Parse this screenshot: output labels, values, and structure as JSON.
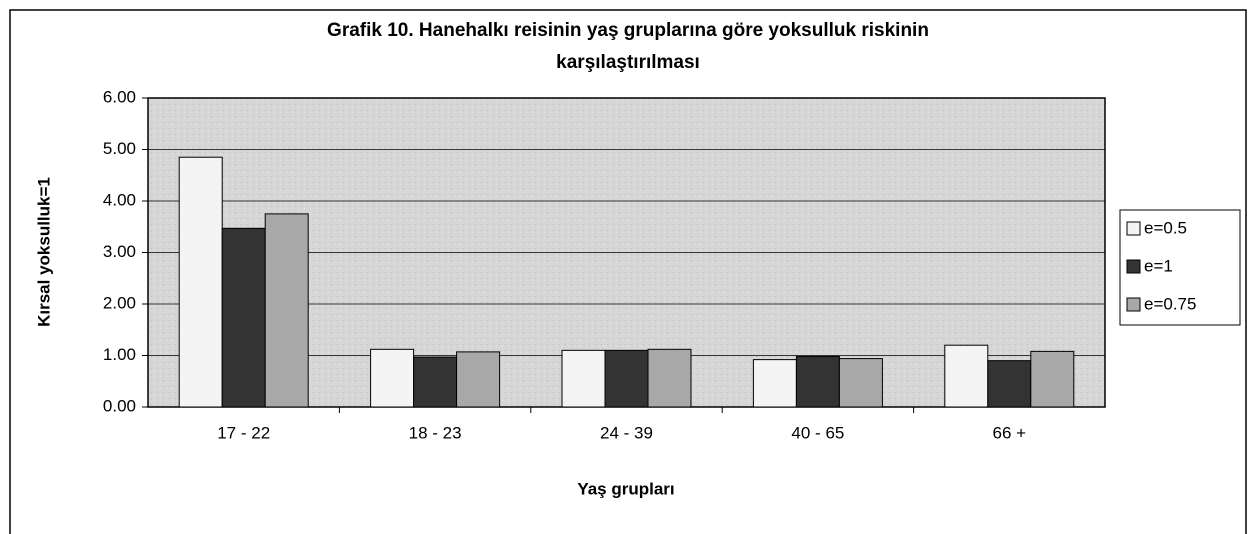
{
  "chart_data": {
    "type": "bar",
    "title": "Grafik 10. Hanehalkı reisinin yaş gruplarına göre yoksulluk riskinin",
    "subtitle": "karşılaştırılması",
    "y_label": "Kırsal yoksulluk=1",
    "x_label": "Yaş grupları",
    "categories": [
      "17 - 22",
      "18 - 23",
      "24 - 39",
      "40 - 65",
      "66 +"
    ],
    "series": [
      {
        "name": "e=0.5",
        "color": "#f4f4f4",
        "values": [
          4.85,
          1.12,
          1.1,
          0.92,
          1.2
        ]
      },
      {
        "name": "e=1",
        "color": "#333333",
        "values": [
          3.47,
          0.97,
          1.1,
          0.98,
          0.9
        ]
      },
      {
        "name": "e=0.75",
        "color": "#a8a8a8",
        "values": [
          3.75,
          1.07,
          1.12,
          0.94,
          1.08
        ]
      }
    ],
    "ylim": [
      0,
      6
    ],
    "yticks": [
      {
        "value": 0,
        "label": "0.00"
      },
      {
        "value": 1,
        "label": "1.00"
      },
      {
        "value": 2,
        "label": "2.00"
      },
      {
        "value": 3,
        "label": "3.00"
      },
      {
        "value": 4,
        "label": "4.00"
      },
      {
        "value": 5,
        "label": "5.00"
      },
      {
        "value": 6,
        "label": "6.00"
      }
    ],
    "grid": true,
    "legend": "right"
  }
}
